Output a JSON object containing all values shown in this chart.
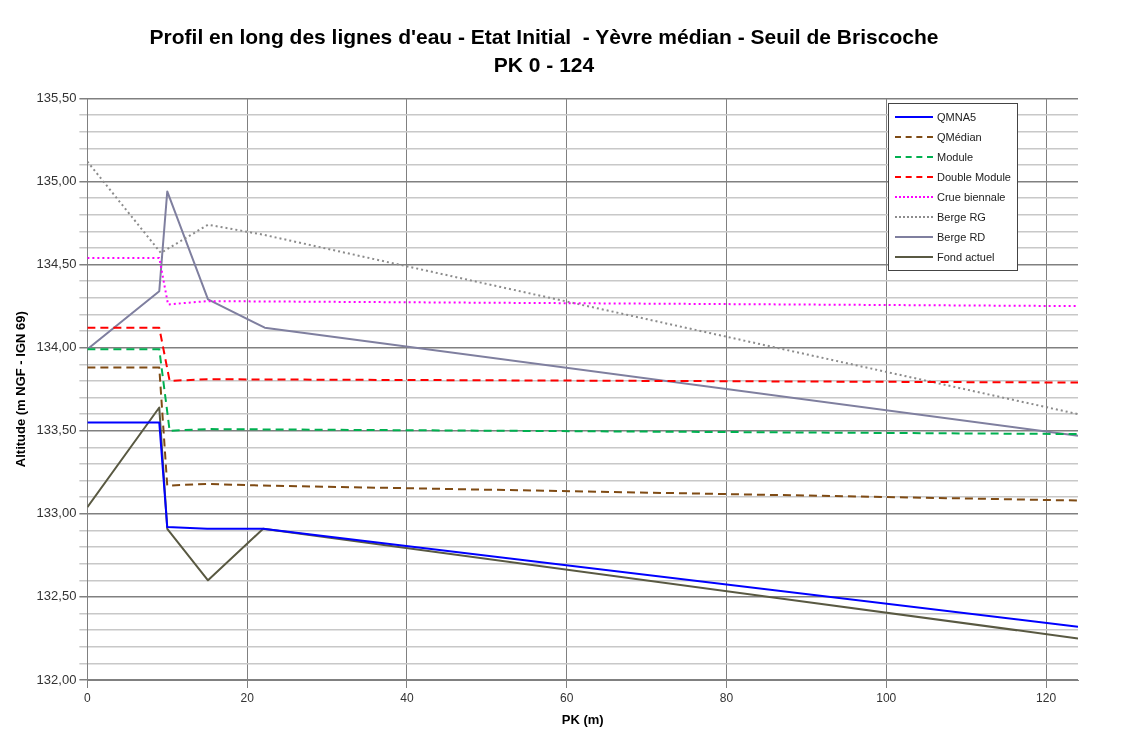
{
  "chart_data": {
    "type": "line",
    "title": "Profil en long des lignes d'eau - Etat Initial  - Yèvre médian - Seuil de Briscoche",
    "subtitle": "PK 0 - 124",
    "xlabel": "PK (m)",
    "ylabel": "Altitude (m NGF - IGN 69)",
    "xlim": [
      0,
      124
    ],
    "xticks": [
      0,
      20,
      40,
      60,
      80,
      100,
      120
    ],
    "ylim": [
      132,
      135.5
    ],
    "yticks": [
      {
        "value": 132,
        "label": "132,00"
      },
      {
        "value": 132.1,
        "label": null
      },
      {
        "value": 132.2,
        "label": null
      },
      {
        "value": 132.3,
        "label": null
      },
      {
        "value": 132.4,
        "label": null
      },
      {
        "value": 132.5,
        "label": "132,50"
      },
      {
        "value": 132.6,
        "label": null
      },
      {
        "value": 132.7,
        "label": null
      },
      {
        "value": 132.8,
        "label": null
      },
      {
        "value": 132.9,
        "label": null
      },
      {
        "value": 133,
        "label": "133,00"
      },
      {
        "value": 133.1,
        "label": null
      },
      {
        "value": 133.2,
        "label": null
      },
      {
        "value": 133.3,
        "label": null
      },
      {
        "value": 133.4,
        "label": null
      },
      {
        "value": 133.5,
        "label": "133,50"
      },
      {
        "value": 133.6,
        "label": null
      },
      {
        "value": 133.7,
        "label": null
      },
      {
        "value": 133.8,
        "label": null
      },
      {
        "value": 133.9,
        "label": null
      },
      {
        "value": 134,
        "label": "134,00"
      },
      {
        "value": 134.1,
        "label": null
      },
      {
        "value": 134.2,
        "label": null
      },
      {
        "value": 134.3,
        "label": null
      },
      {
        "value": 134.4,
        "label": null
      },
      {
        "value": 134.5,
        "label": "134,50"
      },
      {
        "value": 134.6,
        "label": null
      },
      {
        "value": 134.7,
        "label": null
      },
      {
        "value": 134.8,
        "label": null
      },
      {
        "value": 134.9,
        "label": null
      },
      {
        "value": 135,
        "label": "135,00"
      },
      {
        "value": 135.1,
        "label": null
      },
      {
        "value": 135.2,
        "label": null
      },
      {
        "value": 135.3,
        "label": null
      },
      {
        "value": 135.4,
        "label": null
      },
      {
        "value": 135.5,
        "label": "135,50"
      }
    ],
    "grid": true,
    "legend": "top right",
    "marker": "none",
    "series": [
      {
        "name": "QMNA5",
        "color": "#0000ff",
        "line_style": "solid",
        "x": [
          0,
          9,
          10,
          15,
          22,
          124
        ],
        "values": [
          133.55,
          133.55,
          132.92,
          132.91,
          132.91,
          132.32
        ]
      },
      {
        "name": "QMédian",
        "color": "#7f4b14",
        "line_style": "dashed",
        "x": [
          0,
          9,
          10,
          15,
          22,
          124
        ],
        "values": [
          133.88,
          133.88,
          133.17,
          133.18,
          133.17,
          133.08
        ]
      },
      {
        "name": "Module",
        "color": "#00b050",
        "line_style": "dashed",
        "x": [
          0,
          9,
          10.3,
          15,
          124
        ],
        "values": [
          133.99,
          133.99,
          133.5,
          133.51,
          133.48
        ]
      },
      {
        "name": "Double Module",
        "color": "#ff0000",
        "line_style": "dashed",
        "x": [
          0,
          9,
          10.3,
          15,
          124
        ],
        "values": [
          134.12,
          134.12,
          133.8,
          133.81,
          133.79
        ]
      },
      {
        "name": "Crue biennale",
        "color": "#ff00ff",
        "line_style": "dotted",
        "x": [
          0,
          9,
          10.1,
          15,
          124
        ],
        "values": [
          134.54,
          134.54,
          134.26,
          134.28,
          134.25
        ]
      },
      {
        "name": "Berge RG",
        "color": "#8c8c8c",
        "line_style": "dotted",
        "x": [
          0,
          9.2,
          15.1,
          22,
          124
        ],
        "values": [
          135.12,
          134.57,
          134.74,
          134.68,
          133.6
        ]
      },
      {
        "name": "Berge RD",
        "color": "#7f7f9f",
        "line_style": "solid",
        "x": [
          0,
          9,
          10,
          15.1,
          22.2,
          124
        ],
        "values": [
          133.99,
          134.34,
          134.94,
          134.29,
          134.12,
          133.47
        ]
      },
      {
        "name": "Fond actuel",
        "color": "#595942",
        "line_style": "solid",
        "x": [
          0,
          9,
          10,
          15.1,
          22,
          124
        ],
        "values": [
          133.04,
          133.64,
          132.91,
          132.6,
          132.91,
          132.25
        ]
      }
    ]
  }
}
